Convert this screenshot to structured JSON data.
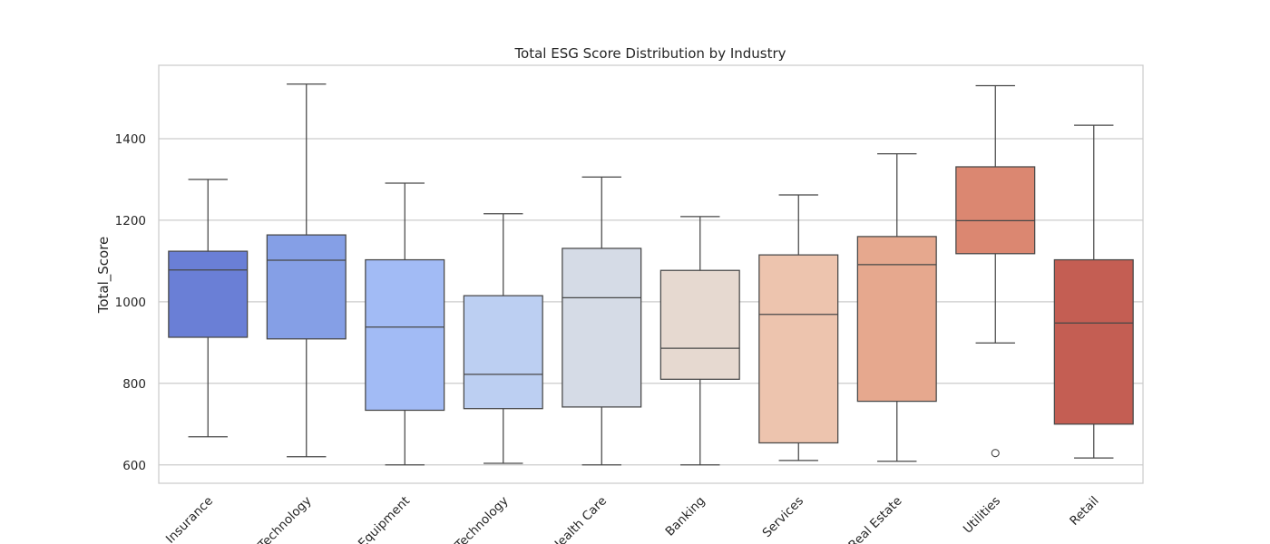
{
  "chart_data": {
    "type": "box",
    "title": "Total ESG Score Distribution by Industry",
    "xlabel": "",
    "ylabel": "Total_Score",
    "ylim": [
      555,
      1580
    ],
    "yticks": [
      600,
      800,
      1000,
      1200,
      1400
    ],
    "grid": "horizontal",
    "categories": [
      "Insurance",
      "Technology",
      "Equipment",
      "Technology",
      "Health Care",
      "Banking",
      "Services",
      "Real Estate",
      "Utilities",
      "Retail"
    ],
    "boxes": [
      {
        "category": "Insurance",
        "whisker_low": 669,
        "q1": 913,
        "median": 1078,
        "q3": 1124,
        "whisker_high": 1300,
        "outliers": [],
        "color": "#6a7fd6"
      },
      {
        "category": "Technology",
        "whisker_low": 620,
        "q1": 909,
        "median": 1102,
        "q3": 1164,
        "whisker_high": 1534,
        "outliers": [],
        "color": "#859fe6"
      },
      {
        "category": "Equipment",
        "whisker_low": 600,
        "q1": 734,
        "median": 938,
        "q3": 1103,
        "whisker_high": 1291,
        "outliers": [],
        "color": "#a2bbf5"
      },
      {
        "category": "Technology",
        "whisker_low": 604,
        "q1": 738,
        "median": 822,
        "q3": 1015,
        "whisker_high": 1216,
        "outliers": [],
        "color": "#bccff2"
      },
      {
        "category": "Health Care",
        "whisker_low": 600,
        "q1": 742,
        "median": 1010,
        "q3": 1131,
        "whisker_high": 1306,
        "outliers": [],
        "color": "#d5dbe6"
      },
      {
        "category": "Banking",
        "whisker_low": 600,
        "q1": 810,
        "median": 886,
        "q3": 1077,
        "whisker_high": 1209,
        "outliers": [],
        "color": "#e6d9d0"
      },
      {
        "category": "Services",
        "whisker_low": 611,
        "q1": 654,
        "median": 969,
        "q3": 1115,
        "whisker_high": 1262,
        "outliers": [],
        "color": "#edc4ae"
      },
      {
        "category": "Real Estate",
        "whisker_low": 609,
        "q1": 756,
        "median": 1091,
        "q3": 1160,
        "whisker_high": 1363,
        "outliers": [],
        "color": "#e6a88e"
      },
      {
        "category": "Utilities",
        "whisker_low": 899,
        "q1": 1118,
        "median": 1199,
        "q3": 1331,
        "whisker_high": 1530,
        "outliers": [
          629
        ],
        "color": "#db8771"
      },
      {
        "category": "Retail",
        "whisker_low": 617,
        "q1": 700,
        "median": 948,
        "q3": 1103,
        "whisker_high": 1433,
        "outliers": [],
        "color": "#c45e53"
      }
    ]
  }
}
